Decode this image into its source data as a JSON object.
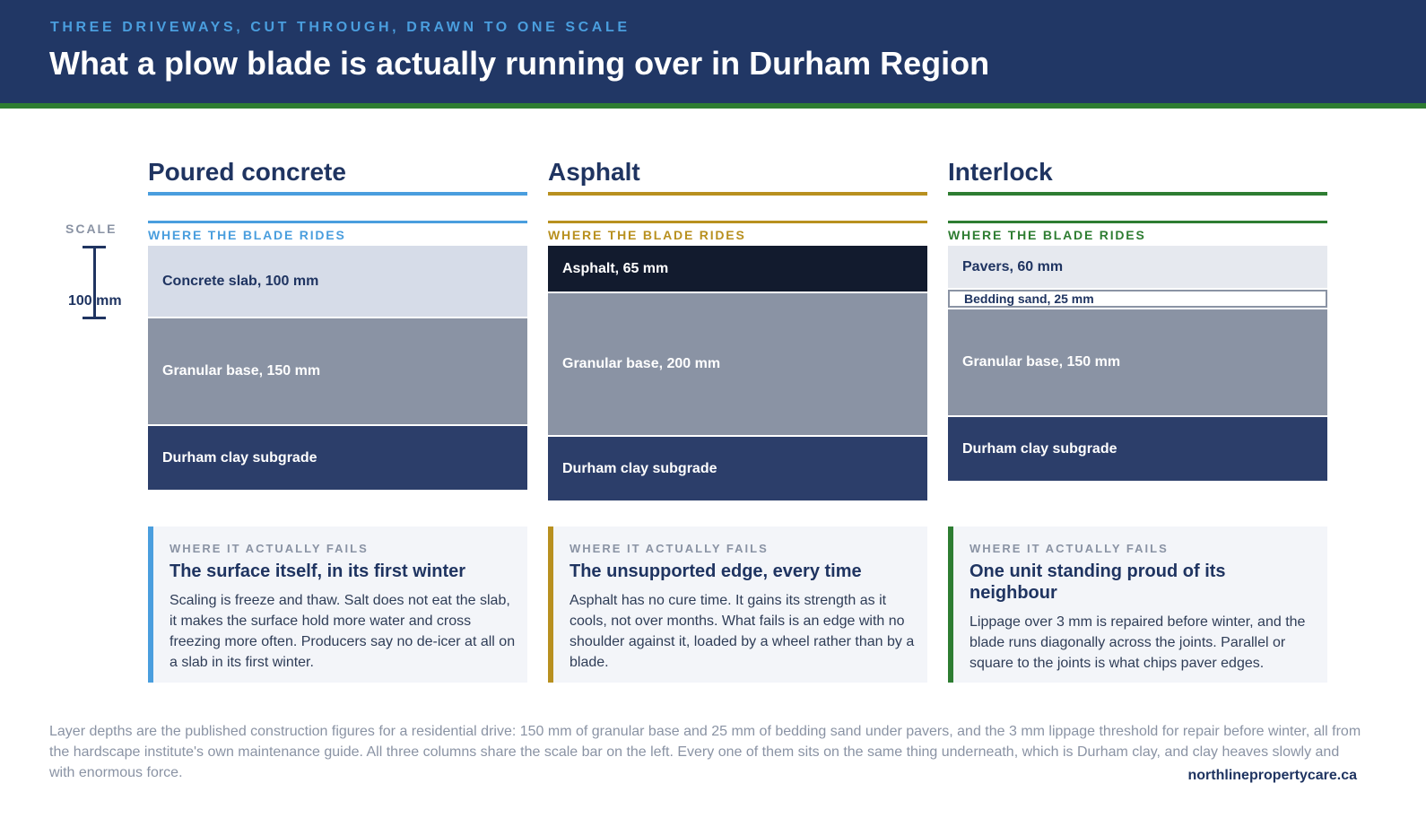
{
  "header": {
    "kicker": "THREE DRIVEWAYS, CUT THROUGH, DRAWN TO ONE SCALE",
    "title": "What a plow blade is actually running over in Durham Region"
  },
  "scale": {
    "label": "SCALE",
    "value_label": "100 mm",
    "length_mm": 100
  },
  "colors": {
    "header_bg": "#213765",
    "stripe": "#2e7d32",
    "concrete_accent": "#4a9ede",
    "asphalt_accent": "#b8901f",
    "interlock_accent": "#2e7d32"
  },
  "columns": [
    {
      "title": "Poured concrete",
      "blade_label": "WHERE THE BLADE RIDES",
      "layers": [
        {
          "label": "Concrete slab, 100 mm",
          "depth_mm": 100
        },
        {
          "label": "Granular base, 150 mm",
          "depth_mm": 150
        },
        {
          "label": "Durham clay subgrade"
        }
      ],
      "card": {
        "kicker": "WHERE IT ACTUALLY FAILS",
        "title": "The surface itself, in its first winter",
        "body": "Scaling is freeze and thaw. Salt does not eat the slab, it makes the surface hold more water and cross freezing more often. Producers say no de-icer at all on a slab in its first winter."
      }
    },
    {
      "title": "Asphalt",
      "blade_label": "WHERE THE BLADE RIDES",
      "layers": [
        {
          "label": "Asphalt, 65 mm",
          "depth_mm": 65
        },
        {
          "label": "Granular base, 200 mm",
          "depth_mm": 200
        },
        {
          "label": "Durham clay subgrade"
        }
      ],
      "card": {
        "kicker": "WHERE IT ACTUALLY FAILS",
        "title": "The unsupported edge, every time",
        "body": "Asphalt has no cure time. It gains its strength as it cools, not over months. What fails is an edge with no shoulder against it, loaded by a wheel rather than by a blade."
      }
    },
    {
      "title": "Interlock",
      "blade_label": "WHERE THE BLADE RIDES",
      "layers": [
        {
          "label": "Pavers, 60 mm",
          "depth_mm": 60
        },
        {
          "label": "Bedding sand, 25 mm",
          "depth_mm": 25
        },
        {
          "label": "Granular base, 150 mm",
          "depth_mm": 150
        },
        {
          "label": "Durham clay subgrade"
        }
      ],
      "card": {
        "kicker": "WHERE IT ACTUALLY FAILS",
        "title": "One unit standing proud of its neighbour",
        "body": "Lippage over 3 mm is repaired before winter, and the blade runs diagonally across the joints. Parallel or square to the joints is what chips paver edges."
      }
    }
  ],
  "footer": {
    "note": "Layer depths are the published construction figures for a residential drive: 150 mm of granular base and 25 mm of bedding sand under pavers, and the 3 mm lippage threshold for repair before winter, all from the hardscape institute's own maintenance guide. All three columns share the scale bar on the left. Every one of them sits on the same thing underneath, which is Durham clay, and clay heaves slowly and with enormous force.",
    "site": "northlinepropertycare.ca"
  }
}
